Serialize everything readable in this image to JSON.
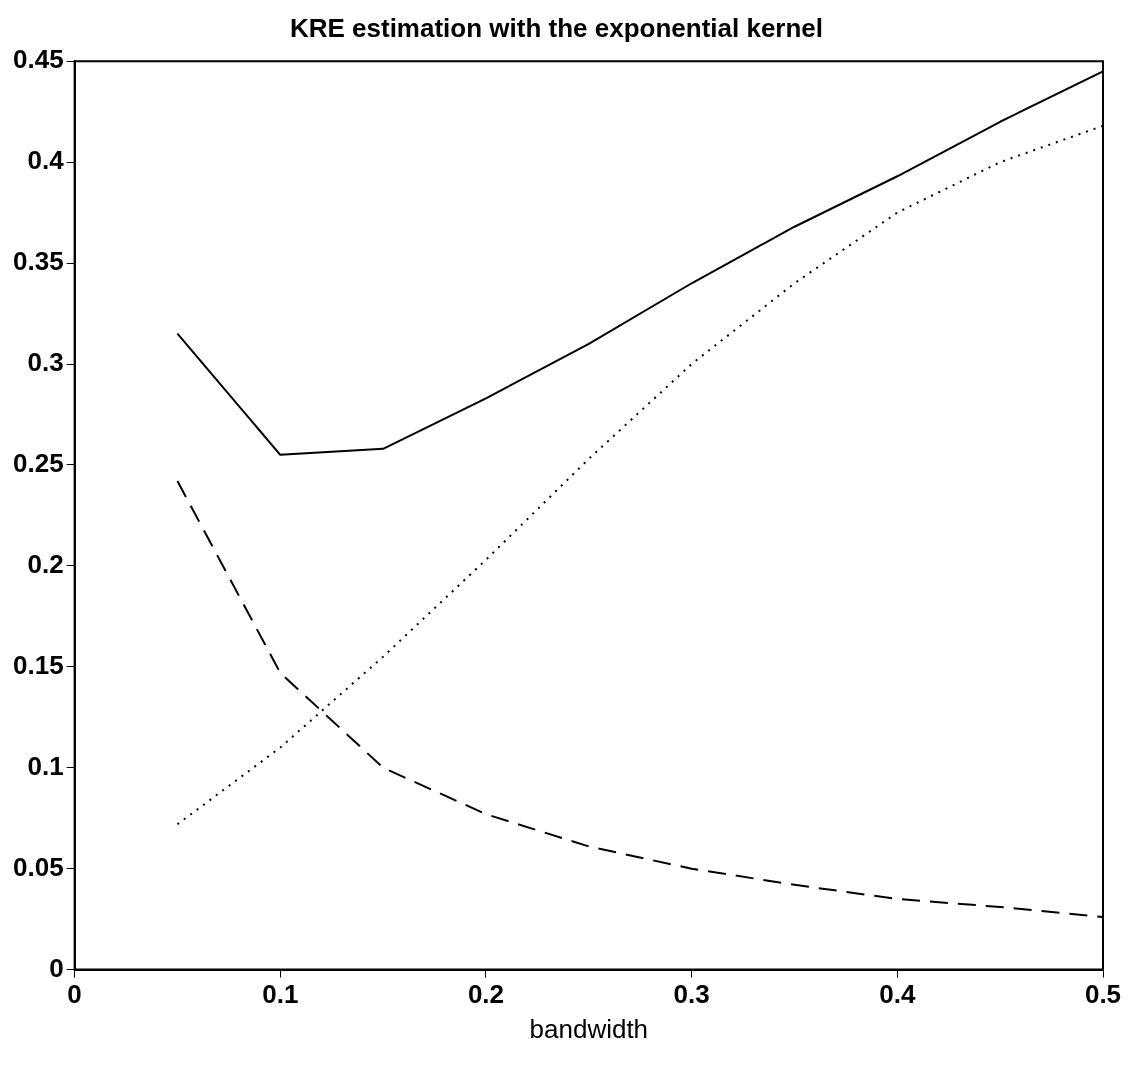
{
  "chart_data": {
    "type": "line",
    "title": "KRE estimation with the exponential kernel",
    "xlabel": "bandwidth",
    "xlim": [
      0,
      0.5
    ],
    "xticks": [
      0,
      0.1,
      0.2,
      0.3,
      0.4,
      0.5
    ],
    "ylim": [
      0,
      0.45
    ],
    "yticks": [
      0,
      0.05,
      0.1,
      0.15,
      0.2,
      0.25,
      0.3,
      0.35,
      0.4,
      0.45
    ],
    "grid": false,
    "legend": false,
    "marker": "none",
    "x": [
      0.05,
      0.1,
      0.15,
      0.2,
      0.25,
      0.3,
      0.35,
      0.4,
      0.45,
      0.5
    ],
    "series": [
      {
        "color": "#000000",
        "line_style": "solid",
        "values": [
          0.315,
          0.255,
          0.258,
          0.283,
          0.31,
          0.34,
          0.368,
          0.393,
          0.42,
          0.445
        ]
      },
      {
        "color": "#000000",
        "line_style": "dashed",
        "values": [
          0.242,
          0.147,
          0.1,
          0.077,
          0.061,
          0.05,
          0.042,
          0.035,
          0.031,
          0.026
        ]
      },
      {
        "color": "#000000",
        "line_style": "dotted",
        "values": [
          0.072,
          0.11,
          0.155,
          0.203,
          0.253,
          0.3,
          0.34,
          0.375,
          0.4,
          0.418
        ]
      }
    ]
  }
}
